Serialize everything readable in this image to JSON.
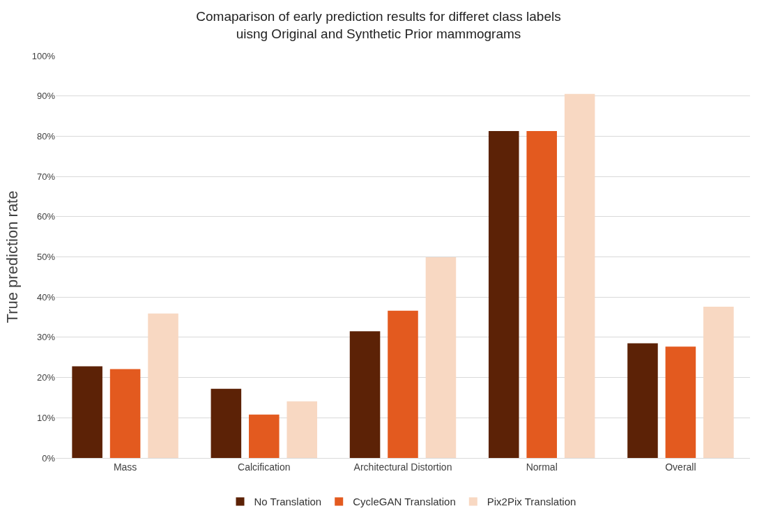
{
  "chart_data": {
    "type": "bar",
    "title": "Comaparison of early prediction results for differet class labels\nuisng Original and Synthetic Prior mammograms",
    "ylabel": "True prediction rate",
    "categories": [
      "Mass",
      "Calcification",
      "Architectural Distortion",
      "Normal",
      "Overall"
    ],
    "series": [
      {
        "name": "No Translation",
        "color": "#5c2206",
        "values": [
          22.8,
          17.2,
          31.5,
          81.3,
          28.5
        ]
      },
      {
        "name": "CycleGAN Translation",
        "color": "#e35a1f",
        "values": [
          22.1,
          10.8,
          36.6,
          81.3,
          27.7
        ]
      },
      {
        "name": "Pix2Pix Translation",
        "color": "#f8d8c2",
        "values": [
          35.9,
          14.1,
          49.9,
          90.5,
          37.6
        ]
      }
    ],
    "ylim": [
      0,
      100
    ],
    "yticks": [
      {
        "value": 0,
        "label": "0%"
      },
      {
        "value": 10,
        "label": "10%"
      },
      {
        "value": 20,
        "label": "20%"
      },
      {
        "value": 30,
        "label": "30%"
      },
      {
        "value": 40,
        "label": "40%"
      },
      {
        "value": 50,
        "label": "50%"
      },
      {
        "value": 60,
        "label": "60%"
      },
      {
        "value": 70,
        "label": "70%"
      },
      {
        "value": 80,
        "label": "80%"
      },
      {
        "value": 90,
        "label": "90%"
      },
      {
        "value": 100,
        "label": "100%"
      }
    ],
    "grid": "y",
    "legend": "bottom"
  }
}
